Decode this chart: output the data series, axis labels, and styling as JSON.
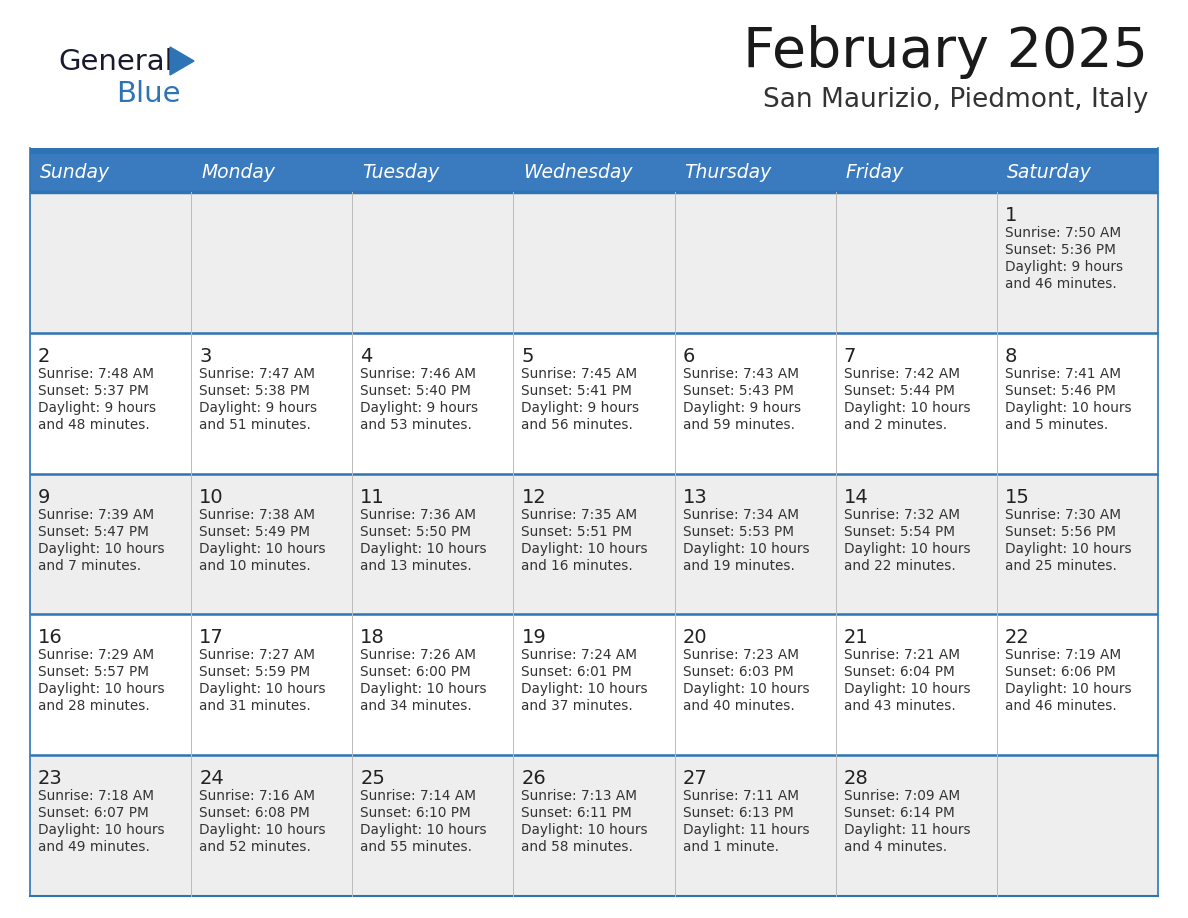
{
  "title": "February 2025",
  "subtitle": "San Maurizio, Piedmont, Italy",
  "header_bg": "#3a7abf",
  "header_text_color": "#FFFFFF",
  "row_bg_light": "#EEEEEE",
  "row_bg_white": "#FFFFFF",
  "border_color": "#2E74B5",
  "text_color": "#333333",
  "day_number_color": "#222222",
  "days_of_week": [
    "Sunday",
    "Monday",
    "Tuesday",
    "Wednesday",
    "Thursday",
    "Friday",
    "Saturday"
  ],
  "weeks": [
    [
      {
        "day": "",
        "info": ""
      },
      {
        "day": "",
        "info": ""
      },
      {
        "day": "",
        "info": ""
      },
      {
        "day": "",
        "info": ""
      },
      {
        "day": "",
        "info": ""
      },
      {
        "day": "",
        "info": ""
      },
      {
        "day": "1",
        "info": "Sunrise: 7:50 AM\nSunset: 5:36 PM\nDaylight: 9 hours\nand 46 minutes."
      }
    ],
    [
      {
        "day": "2",
        "info": "Sunrise: 7:48 AM\nSunset: 5:37 PM\nDaylight: 9 hours\nand 48 minutes."
      },
      {
        "day": "3",
        "info": "Sunrise: 7:47 AM\nSunset: 5:38 PM\nDaylight: 9 hours\nand 51 minutes."
      },
      {
        "day": "4",
        "info": "Sunrise: 7:46 AM\nSunset: 5:40 PM\nDaylight: 9 hours\nand 53 minutes."
      },
      {
        "day": "5",
        "info": "Sunrise: 7:45 AM\nSunset: 5:41 PM\nDaylight: 9 hours\nand 56 minutes."
      },
      {
        "day": "6",
        "info": "Sunrise: 7:43 AM\nSunset: 5:43 PM\nDaylight: 9 hours\nand 59 minutes."
      },
      {
        "day": "7",
        "info": "Sunrise: 7:42 AM\nSunset: 5:44 PM\nDaylight: 10 hours\nand 2 minutes."
      },
      {
        "day": "8",
        "info": "Sunrise: 7:41 AM\nSunset: 5:46 PM\nDaylight: 10 hours\nand 5 minutes."
      }
    ],
    [
      {
        "day": "9",
        "info": "Sunrise: 7:39 AM\nSunset: 5:47 PM\nDaylight: 10 hours\nand 7 minutes."
      },
      {
        "day": "10",
        "info": "Sunrise: 7:38 AM\nSunset: 5:49 PM\nDaylight: 10 hours\nand 10 minutes."
      },
      {
        "day": "11",
        "info": "Sunrise: 7:36 AM\nSunset: 5:50 PM\nDaylight: 10 hours\nand 13 minutes."
      },
      {
        "day": "12",
        "info": "Sunrise: 7:35 AM\nSunset: 5:51 PM\nDaylight: 10 hours\nand 16 minutes."
      },
      {
        "day": "13",
        "info": "Sunrise: 7:34 AM\nSunset: 5:53 PM\nDaylight: 10 hours\nand 19 minutes."
      },
      {
        "day": "14",
        "info": "Sunrise: 7:32 AM\nSunset: 5:54 PM\nDaylight: 10 hours\nand 22 minutes."
      },
      {
        "day": "15",
        "info": "Sunrise: 7:30 AM\nSunset: 5:56 PM\nDaylight: 10 hours\nand 25 minutes."
      }
    ],
    [
      {
        "day": "16",
        "info": "Sunrise: 7:29 AM\nSunset: 5:57 PM\nDaylight: 10 hours\nand 28 minutes."
      },
      {
        "day": "17",
        "info": "Sunrise: 7:27 AM\nSunset: 5:59 PM\nDaylight: 10 hours\nand 31 minutes."
      },
      {
        "day": "18",
        "info": "Sunrise: 7:26 AM\nSunset: 6:00 PM\nDaylight: 10 hours\nand 34 minutes."
      },
      {
        "day": "19",
        "info": "Sunrise: 7:24 AM\nSunset: 6:01 PM\nDaylight: 10 hours\nand 37 minutes."
      },
      {
        "day": "20",
        "info": "Sunrise: 7:23 AM\nSunset: 6:03 PM\nDaylight: 10 hours\nand 40 minutes."
      },
      {
        "day": "21",
        "info": "Sunrise: 7:21 AM\nSunset: 6:04 PM\nDaylight: 10 hours\nand 43 minutes."
      },
      {
        "day": "22",
        "info": "Sunrise: 7:19 AM\nSunset: 6:06 PM\nDaylight: 10 hours\nand 46 minutes."
      }
    ],
    [
      {
        "day": "23",
        "info": "Sunrise: 7:18 AM\nSunset: 6:07 PM\nDaylight: 10 hours\nand 49 minutes."
      },
      {
        "day": "24",
        "info": "Sunrise: 7:16 AM\nSunset: 6:08 PM\nDaylight: 10 hours\nand 52 minutes."
      },
      {
        "day": "25",
        "info": "Sunrise: 7:14 AM\nSunset: 6:10 PM\nDaylight: 10 hours\nand 55 minutes."
      },
      {
        "day": "26",
        "info": "Sunrise: 7:13 AM\nSunset: 6:11 PM\nDaylight: 10 hours\nand 58 minutes."
      },
      {
        "day": "27",
        "info": "Sunrise: 7:11 AM\nSunset: 6:13 PM\nDaylight: 11 hours\nand 1 minute."
      },
      {
        "day": "28",
        "info": "Sunrise: 7:09 AM\nSunset: 6:14 PM\nDaylight: 11 hours\nand 4 minutes."
      },
      {
        "day": "",
        "info": ""
      }
    ]
  ],
  "logo_text_general": "General",
  "logo_text_blue": "Blue",
  "logo_color_general": "#1a1a2e",
  "logo_color_blue": "#2E74B5",
  "logo_triangle_color": "#2E74B5"
}
